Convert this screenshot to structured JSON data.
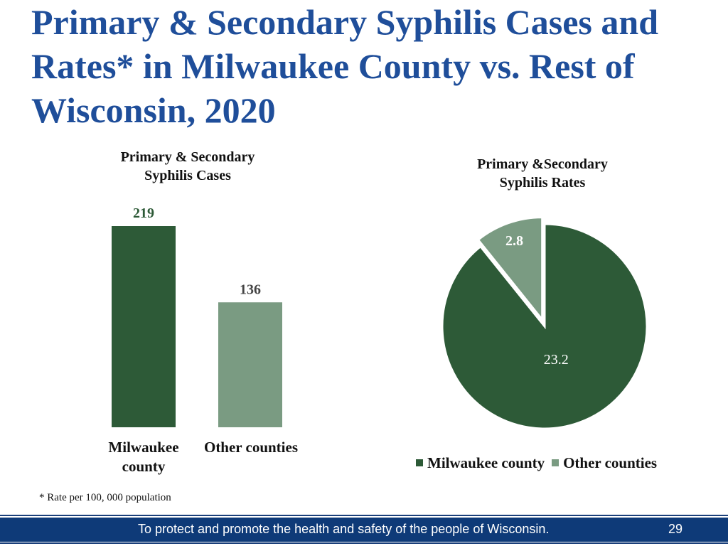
{
  "slide": {
    "title": "Primary & Secondary Syphilis Cases and Rates* in Milwaukee County vs. Rest of Wisconsin, 2020",
    "footnote": "* Rate per 100, 000 population",
    "footer_text": "To protect and promote the health and safety of the people of Wisconsin.",
    "page_number": "29"
  },
  "colors": {
    "title": "#1f4e9a",
    "milwaukee": "#2d5a37",
    "other": "#7a9b82",
    "footer_bar": "#0e3a78"
  },
  "chart_data": [
    {
      "type": "bar",
      "title": "Primary & Secondary\nSyphilis Cases",
      "categories": [
        "Milwaukee\ncounty",
        "Other counties"
      ],
      "values": [
        219,
        136
      ],
      "ylim": [
        0,
        219
      ],
      "data_labels": [
        "219",
        "136"
      ],
      "legend": "none",
      "grid": false
    },
    {
      "type": "pie",
      "title": "Primary &Secondary\nSyphilis Rates",
      "labels": [
        "Milwaukee county",
        "Other counties"
      ],
      "values": [
        23.2,
        2.8
      ],
      "data_labels": [
        "23.2",
        "2.8"
      ],
      "exploded": [
        false,
        true
      ],
      "legend": "bottom",
      "legend_entries": [
        "Milwaukee county",
        "Other counties"
      ]
    }
  ]
}
